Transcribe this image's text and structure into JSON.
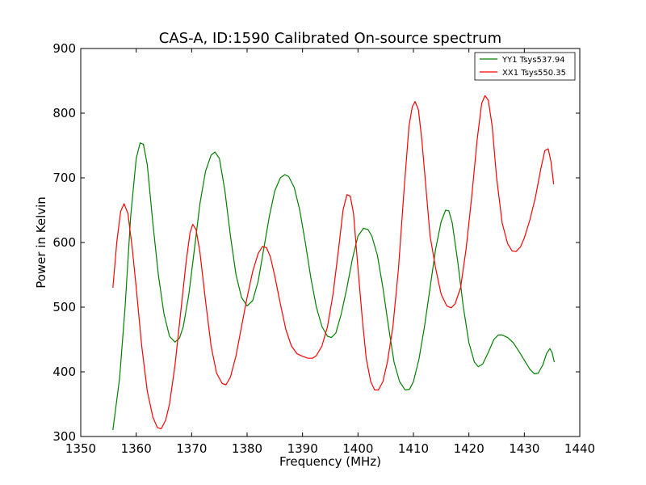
{
  "chart_data": {
    "type": "line",
    "title": "CAS-A, ID:1590 Calibrated On-source spectrum",
    "xlabel": "Frequency (MHz)",
    "ylabel": "Power in Kelvin",
    "xlim": [
      1350,
      1440
    ],
    "ylim": [
      300,
      900
    ],
    "xticks": [
      1350,
      1360,
      1370,
      1380,
      1390,
      1400,
      1410,
      1420,
      1430,
      1440
    ],
    "yticks": [
      300,
      400,
      500,
      600,
      700,
      800,
      900
    ],
    "grid": false,
    "legend_position": "top-right",
    "series": [
      {
        "name": "YY1 Tsys537.94",
        "color": "#008000",
        "points": [
          [
            1355.8,
            310
          ],
          [
            1357.0,
            390
          ],
          [
            1358.0,
            500
          ],
          [
            1359.0,
            640
          ],
          [
            1360.0,
            730
          ],
          [
            1360.7,
            754
          ],
          [
            1361.3,
            752
          ],
          [
            1362.0,
            720
          ],
          [
            1363.0,
            630
          ],
          [
            1364.0,
            550
          ],
          [
            1365.0,
            490
          ],
          [
            1366.0,
            455
          ],
          [
            1367.0,
            446
          ],
          [
            1367.8,
            452
          ],
          [
            1368.5,
            470
          ],
          [
            1369.5,
            520
          ],
          [
            1370.5,
            590
          ],
          [
            1371.5,
            660
          ],
          [
            1372.5,
            710
          ],
          [
            1373.5,
            735
          ],
          [
            1374.2,
            740
          ],
          [
            1375.0,
            730
          ],
          [
            1376.0,
            680
          ],
          [
            1377.0,
            610
          ],
          [
            1378.0,
            550
          ],
          [
            1379.0,
            515
          ],
          [
            1380.0,
            502
          ],
          [
            1381.0,
            510
          ],
          [
            1382.0,
            540
          ],
          [
            1383.0,
            590
          ],
          [
            1384.0,
            640
          ],
          [
            1385.0,
            680
          ],
          [
            1386.0,
            700
          ],
          [
            1386.8,
            705
          ],
          [
            1387.5,
            702
          ],
          [
            1388.5,
            685
          ],
          [
            1389.5,
            650
          ],
          [
            1390.5,
            600
          ],
          [
            1391.5,
            545
          ],
          [
            1392.5,
            500
          ],
          [
            1393.5,
            470
          ],
          [
            1394.5,
            455
          ],
          [
            1395.2,
            453
          ],
          [
            1396.0,
            460
          ],
          [
            1397.0,
            490
          ],
          [
            1398.0,
            530
          ],
          [
            1399.0,
            575
          ],
          [
            1400.0,
            610
          ],
          [
            1401.0,
            622
          ],
          [
            1401.8,
            620
          ],
          [
            1402.5,
            610
          ],
          [
            1403.5,
            580
          ],
          [
            1404.5,
            530
          ],
          [
            1405.5,
            470
          ],
          [
            1406.5,
            415
          ],
          [
            1407.5,
            385
          ],
          [
            1408.5,
            372
          ],
          [
            1409.3,
            373
          ],
          [
            1410.0,
            385
          ],
          [
            1411.0,
            420
          ],
          [
            1412.0,
            470
          ],
          [
            1413.0,
            530
          ],
          [
            1414.0,
            590
          ],
          [
            1415.0,
            632
          ],
          [
            1415.8,
            650
          ],
          [
            1416.4,
            649
          ],
          [
            1417.0,
            630
          ],
          [
            1418.0,
            570
          ],
          [
            1419.0,
            500
          ],
          [
            1420.0,
            445
          ],
          [
            1421.0,
            415
          ],
          [
            1421.7,
            408
          ],
          [
            1422.5,
            412
          ],
          [
            1423.5,
            430
          ],
          [
            1424.5,
            450
          ],
          [
            1425.3,
            457
          ],
          [
            1426.0,
            457
          ],
          [
            1427.0,
            453
          ],
          [
            1428.0,
            445
          ],
          [
            1429.0,
            432
          ],
          [
            1430.0,
            418
          ],
          [
            1431.0,
            404
          ],
          [
            1431.8,
            397
          ],
          [
            1432.5,
            398
          ],
          [
            1433.3,
            410
          ],
          [
            1434.0,
            428
          ],
          [
            1434.6,
            436
          ],
          [
            1435.0,
            430
          ],
          [
            1435.4,
            415
          ]
        ]
      },
      {
        "name": "XX1 Tsys550.35",
        "color": "#ff0000",
        "points": [
          [
            1355.8,
            530
          ],
          [
            1356.5,
            600
          ],
          [
            1357.2,
            648
          ],
          [
            1357.8,
            660
          ],
          [
            1358.5,
            645
          ],
          [
            1359.3,
            590
          ],
          [
            1360.0,
            530
          ],
          [
            1361.0,
            440
          ],
          [
            1362.0,
            370
          ],
          [
            1363.0,
            330
          ],
          [
            1363.8,
            314
          ],
          [
            1364.5,
            312
          ],
          [
            1365.3,
            325
          ],
          [
            1366.0,
            350
          ],
          [
            1367.0,
            410
          ],
          [
            1368.0,
            490
          ],
          [
            1369.0,
            570
          ],
          [
            1369.7,
            615
          ],
          [
            1370.2,
            628
          ],
          [
            1370.8,
            620
          ],
          [
            1371.5,
            585
          ],
          [
            1372.5,
            510
          ],
          [
            1373.5,
            440
          ],
          [
            1374.5,
            398
          ],
          [
            1375.5,
            382
          ],
          [
            1376.2,
            380
          ],
          [
            1377.0,
            392
          ],
          [
            1378.0,
            425
          ],
          [
            1379.0,
            470
          ],
          [
            1380.0,
            515
          ],
          [
            1381.0,
            555
          ],
          [
            1382.0,
            583
          ],
          [
            1382.8,
            594
          ],
          [
            1383.5,
            592
          ],
          [
            1384.2,
            578
          ],
          [
            1385.0,
            548
          ],
          [
            1386.0,
            505
          ],
          [
            1387.0,
            465
          ],
          [
            1388.0,
            440
          ],
          [
            1389.0,
            428
          ],
          [
            1390.0,
            424
          ],
          [
            1391.0,
            421
          ],
          [
            1391.8,
            421
          ],
          [
            1392.5,
            425
          ],
          [
            1393.5,
            440
          ],
          [
            1394.5,
            470
          ],
          [
            1395.5,
            520
          ],
          [
            1396.5,
            590
          ],
          [
            1397.3,
            650
          ],
          [
            1398.0,
            674
          ],
          [
            1398.6,
            672
          ],
          [
            1399.2,
            645
          ],
          [
            1400.0,
            560
          ],
          [
            1400.8,
            480
          ],
          [
            1401.5,
            420
          ],
          [
            1402.3,
            385
          ],
          [
            1403.0,
            372
          ],
          [
            1403.7,
            372
          ],
          [
            1404.5,
            385
          ],
          [
            1405.3,
            415
          ],
          [
            1406.3,
            470
          ],
          [
            1407.3,
            560
          ],
          [
            1408.3,
            680
          ],
          [
            1409.2,
            780
          ],
          [
            1409.8,
            810
          ],
          [
            1410.3,
            818
          ],
          [
            1410.9,
            805
          ],
          [
            1411.5,
            760
          ],
          [
            1412.3,
            680
          ],
          [
            1413.0,
            610
          ],
          [
            1414.0,
            560
          ],
          [
            1415.0,
            520
          ],
          [
            1416.0,
            502
          ],
          [
            1416.8,
            499
          ],
          [
            1417.5,
            505
          ],
          [
            1418.5,
            530
          ],
          [
            1419.5,
            590
          ],
          [
            1420.5,
            670
          ],
          [
            1421.5,
            760
          ],
          [
            1422.3,
            815
          ],
          [
            1422.9,
            827
          ],
          [
            1423.5,
            820
          ],
          [
            1424.2,
            780
          ],
          [
            1425.0,
            700
          ],
          [
            1426.0,
            630
          ],
          [
            1427.0,
            598
          ],
          [
            1427.8,
            587
          ],
          [
            1428.5,
            586
          ],
          [
            1429.3,
            593
          ],
          [
            1430.0,
            607
          ],
          [
            1431.0,
            635
          ],
          [
            1432.0,
            670
          ],
          [
            1433.0,
            715
          ],
          [
            1433.7,
            742
          ],
          [
            1434.3,
            745
          ],
          [
            1434.8,
            725
          ],
          [
            1435.3,
            690
          ]
        ]
      }
    ]
  }
}
